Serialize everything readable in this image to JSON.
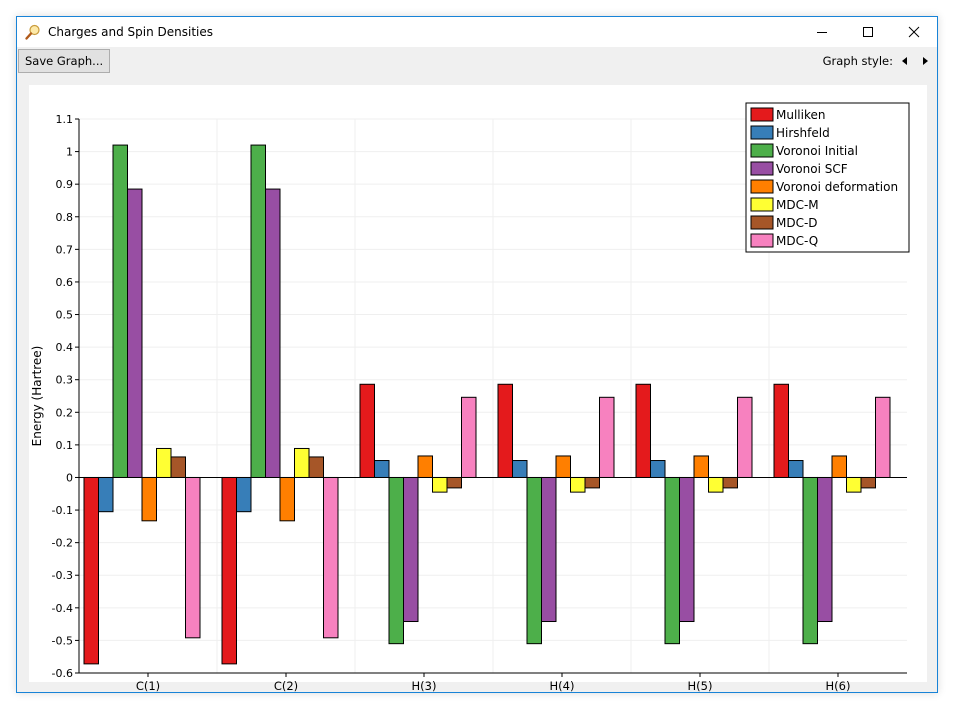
{
  "window": {
    "title": "Charges and Spin Densities",
    "icons": {
      "app": "magnifier-icon",
      "minimize": "minimize-icon",
      "maximize": "maximize-icon",
      "close": "close-icon"
    }
  },
  "toolbar": {
    "save_label": "Save Graph...",
    "graph_style_label": "Graph style:",
    "prev_icon": "arrow-left-icon",
    "next_icon": "arrow-right-icon"
  },
  "chart_data": {
    "type": "bar",
    "title": "",
    "xlabel": "",
    "ylabel": "Energy (Hartree)",
    "ylim": [
      -0.6,
      1.1
    ],
    "yticks": [
      "-0.6",
      "-0.5",
      "-0.4",
      "-0.3",
      "-0.2",
      "-0.1",
      "0",
      "0.1",
      "0.2",
      "0.3",
      "0.4",
      "0.5",
      "0.6",
      "0.7",
      "0.8",
      "0.9",
      "1",
      "1.1"
    ],
    "grid": true,
    "legend_position": "top-right",
    "categories": [
      "C(1)",
      "C(2)",
      "H(3)",
      "H(4)",
      "H(5)",
      "H(6)"
    ],
    "series": [
      {
        "name": "Mulliken",
        "color": "#e41a1c",
        "values": [
          -0.572,
          -0.572,
          0.286,
          0.286,
          0.286,
          0.286
        ]
      },
      {
        "name": "Hirshfeld",
        "color": "#377eb8",
        "values": [
          -0.105,
          -0.105,
          0.052,
          0.052,
          0.052,
          0.052
        ]
      },
      {
        "name": "Voronoi Initial",
        "color": "#4daf4a",
        "values": [
          1.02,
          1.02,
          -0.51,
          -0.51,
          -0.51,
          -0.51
        ]
      },
      {
        "name": "Voronoi SCF",
        "color": "#984ea3",
        "values": [
          0.885,
          0.885,
          -0.442,
          -0.442,
          -0.442,
          -0.442
        ]
      },
      {
        "name": "Voronoi deformation",
        "color": "#ff7f00",
        "values": [
          -0.133,
          -0.133,
          0.066,
          0.066,
          0.066,
          0.066
        ]
      },
      {
        "name": "MDC-M",
        "color": "#ffff33",
        "values": [
          0.089,
          0.089,
          -0.045,
          -0.045,
          -0.045,
          -0.045
        ]
      },
      {
        "name": "MDC-D",
        "color": "#a65628",
        "values": [
          0.063,
          0.063,
          -0.032,
          -0.032,
          -0.032,
          -0.032
        ]
      },
      {
        "name": "MDC-Q",
        "color": "#f781bf",
        "values": [
          -0.492,
          -0.492,
          0.246,
          0.246,
          0.246,
          0.246
        ]
      }
    ]
  }
}
